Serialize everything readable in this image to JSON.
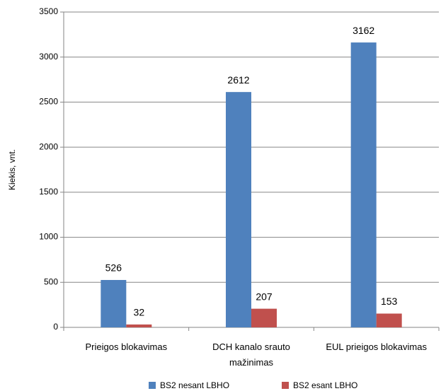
{
  "chart_data": {
    "type": "bar",
    "y_label": "Kiekis, vnt.",
    "categories": [
      "Prieigos blokavimas",
      "DCH kanalo srauto mažinimas",
      "EUL prieigos blokavimas"
    ],
    "series": [
      {
        "name": "BS2 nesant LBHO",
        "color": "#4f81bd",
        "values": [
          526,
          2612,
          3162
        ]
      },
      {
        "name": "BS2 esant LBHO",
        "color": "#c0504d",
        "values": [
          32,
          207,
          153
        ]
      }
    ],
    "ylim": [
      0,
      3500
    ],
    "yticks": [
      0,
      500,
      1000,
      1500,
      2000,
      2500,
      3000,
      3500
    ],
    "grid": true
  }
}
